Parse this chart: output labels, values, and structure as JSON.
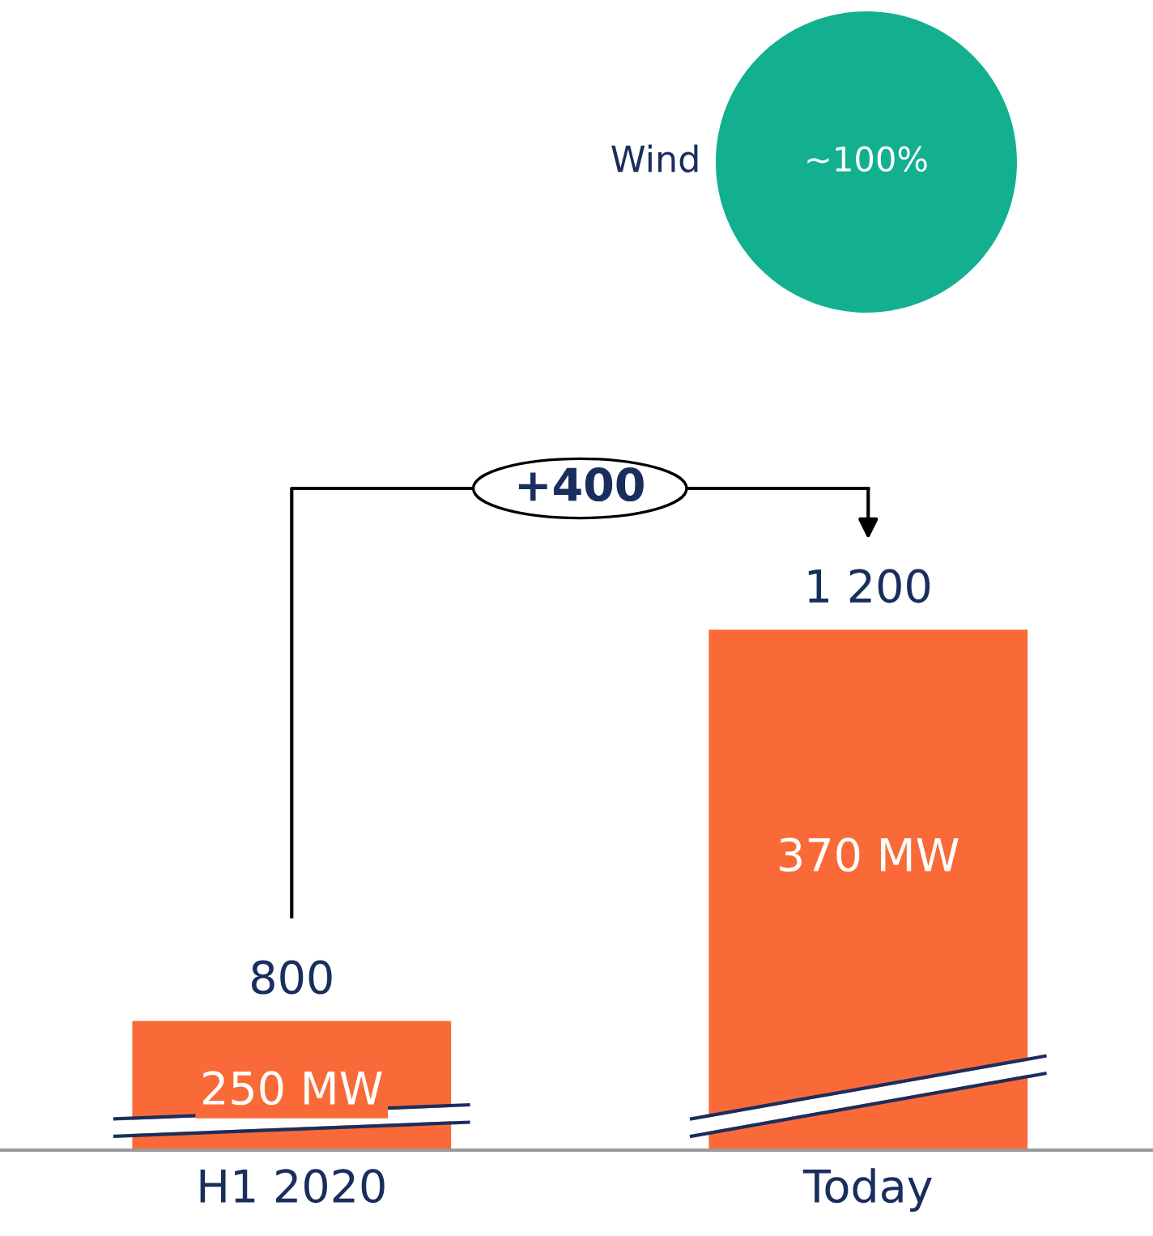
{
  "chart_data": [
    {
      "type": "pie",
      "categories": [
        "Wind"
      ],
      "values": [
        100
      ],
      "colors": [
        "#12b08f"
      ],
      "value_labels": [
        "~100%"
      ]
    },
    {
      "type": "bar",
      "categories": [
        "H1 2020",
        "Today"
      ],
      "values": [
        800,
        1200
      ],
      "value_labels": [
        "800",
        "1 200"
      ],
      "color": "#fa6a38",
      "tick_labels": "x",
      "grid": false,
      "legend": false,
      "annotations": [
        "250 MW",
        "370 MW",
        "+400"
      ]
    }
  ]
}
